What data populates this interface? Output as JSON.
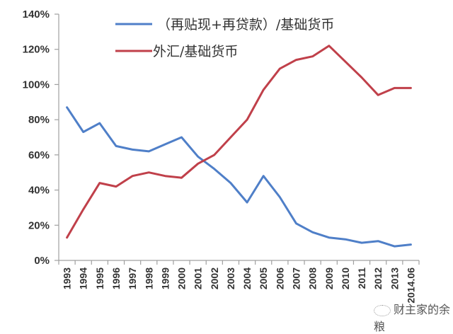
{
  "chart_data": {
    "type": "line",
    "title": "",
    "xlabel": "",
    "ylabel": "",
    "ylim": [
      0,
      140
    ],
    "y_ticks": [
      "0%",
      "20%",
      "40%",
      "60%",
      "80%",
      "100%",
      "120%",
      "140%"
    ],
    "grid": false,
    "legend_position": "top-left inside",
    "categories": [
      "1993",
      "1994",
      "1995",
      "1996",
      "1997",
      "1998",
      "1999",
      "2000",
      "2001",
      "2002",
      "2003",
      "2004",
      "2005",
      "2006",
      "2007",
      "2008",
      "2009",
      "2010",
      "2011",
      "2012",
      "2013",
      "2014.06"
    ],
    "series": [
      {
        "name": "（再贴现+再贷款）/基础货币",
        "color": "#4F7FC8",
        "values": [
          87,
          73,
          78,
          65,
          63,
          62,
          66,
          70,
          59,
          52,
          44,
          33,
          48,
          36,
          21,
          16,
          13,
          12,
          10,
          11,
          8,
          9
        ]
      },
      {
        "name": "外汇/基础货币",
        "color": "#C0404A",
        "values": [
          13,
          29,
          44,
          42,
          48,
          50,
          48,
          47,
          55,
          60,
          70,
          80,
          97,
          109,
          114,
          116,
          122,
          113,
          104,
          94,
          98,
          98
        ]
      }
    ]
  },
  "legend": {
    "items": [
      {
        "label": "（再贴现+再贷款）/基础货币"
      },
      {
        "label": "外汇/基础货币"
      }
    ]
  },
  "watermark": {
    "text": "财主家的余粮",
    "icon": "wechat-icon"
  }
}
